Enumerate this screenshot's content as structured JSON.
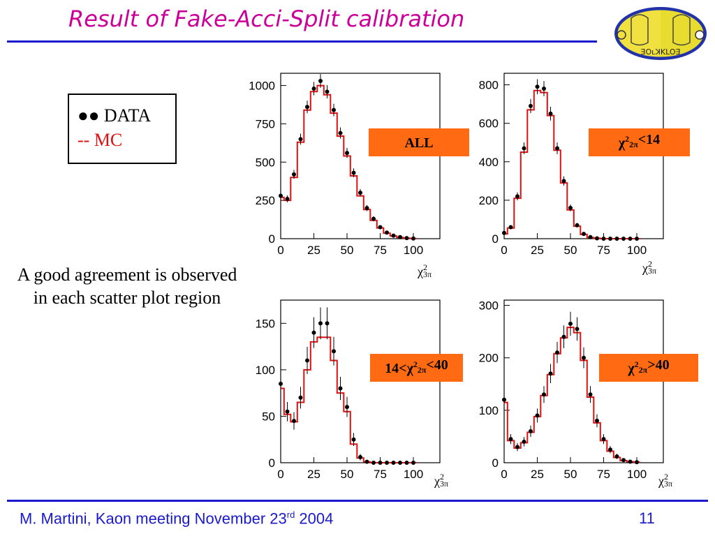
{
  "slide": {
    "title": "Result of Fake-Acci-Split calibration",
    "legend": {
      "data_label": "●● DATA",
      "mc_label": "--  MC"
    },
    "note": "A good agreement is observed  in each scatter plot region",
    "footer": {
      "author_meeting": "M. Martini, Kaon meeting  November 23",
      "date_sup": "rd",
      "year": " 2004",
      "page_number": "11"
    },
    "logo_text": "ƎOʟꓘKLOƎ",
    "colors": {
      "title": "#cc0099",
      "rule": "#1a1acc",
      "footer": "#1a1acc",
      "data": "#000000",
      "mc": "#e01010",
      "cut_box": "#ff6a13"
    }
  },
  "chart_data": [
    {
      "type": "line",
      "cut_label": "ALL",
      "xlabel": "χ²3π",
      "xlim": [
        0,
        120
      ],
      "ylim": [
        0,
        1080
      ],
      "xticks": [
        0,
        25,
        50,
        75,
        100
      ],
      "yticks": [
        0,
        250,
        500,
        750,
        1000
      ],
      "series": [
        {
          "name": "DATA",
          "x": [
            0,
            5,
            10,
            15,
            20,
            25,
            30,
            35,
            40,
            45,
            50,
            55,
            60,
            65,
            70,
            75,
            80,
            85,
            90,
            95,
            100
          ],
          "values": [
            280,
            260,
            420,
            650,
            860,
            980,
            1030,
            960,
            840,
            690,
            560,
            430,
            300,
            200,
            130,
            75,
            40,
            20,
            10,
            4,
            1
          ]
        },
        {
          "name": "MC",
          "x": [
            0,
            5,
            10,
            15,
            20,
            25,
            30,
            35,
            40,
            45,
            50,
            55,
            60,
            65,
            70,
            75,
            80,
            85,
            90,
            95,
            100
          ],
          "values": [
            270,
            250,
            400,
            630,
            840,
            960,
            1000,
            940,
            820,
            670,
            540,
            410,
            280,
            190,
            120,
            70,
            36,
            18,
            8,
            3,
            1
          ]
        }
      ]
    },
    {
      "type": "line",
      "cut_label": "χ²2π<14",
      "xlabel": "χ²3π",
      "xlim": [
        0,
        120
      ],
      "ylim": [
        0,
        860
      ],
      "xticks": [
        0,
        25,
        50,
        75,
        100
      ],
      "yticks": [
        0,
        200,
        400,
        600,
        800
      ],
      "series": [
        {
          "name": "DATA",
          "x": [
            0,
            5,
            10,
            15,
            20,
            25,
            30,
            35,
            40,
            45,
            50,
            55,
            60,
            65,
            70,
            75,
            80,
            85,
            90,
            95,
            100
          ],
          "values": [
            30,
            60,
            220,
            470,
            690,
            790,
            780,
            650,
            470,
            300,
            160,
            70,
            25,
            8,
            2,
            0,
            0,
            0,
            0,
            0,
            0
          ]
        },
        {
          "name": "MC",
          "x": [
            0,
            5,
            10,
            15,
            20,
            25,
            30,
            35,
            40,
            45,
            50,
            55,
            60,
            65,
            70,
            75,
            80,
            85,
            90,
            95,
            100
          ],
          "values": [
            25,
            55,
            210,
            450,
            670,
            770,
            760,
            640,
            460,
            290,
            150,
            65,
            22,
            6,
            2,
            0,
            0,
            0,
            0,
            0,
            0
          ]
        }
      ]
    },
    {
      "type": "line",
      "cut_label": "14<χ²2π<40",
      "xlabel": "χ²3π",
      "xlim": [
        0,
        120
      ],
      "ylim": [
        0,
        175
      ],
      "xticks": [
        0,
        25,
        50,
        75,
        100
      ],
      "yticks": [
        0,
        50,
        100,
        150
      ],
      "series": [
        {
          "name": "DATA",
          "x": [
            0,
            5,
            10,
            15,
            20,
            25,
            30,
            35,
            40,
            45,
            50,
            55,
            60,
            65,
            70,
            75,
            80,
            85,
            90,
            95,
            100
          ],
          "values": [
            85,
            55,
            45,
            70,
            110,
            140,
            150,
            150,
            120,
            80,
            60,
            25,
            6,
            1,
            0,
            0,
            0,
            0,
            0,
            0,
            0
          ]
        },
        {
          "name": "MC",
          "x": [
            0,
            5,
            10,
            15,
            20,
            25,
            30,
            35,
            40,
            45,
            50,
            55,
            60,
            65,
            70,
            75,
            80,
            85,
            90,
            95,
            100
          ],
          "values": [
            80,
            52,
            44,
            65,
            100,
            130,
            135,
            135,
            110,
            75,
            55,
            20,
            5,
            1,
            0,
            0,
            0,
            0,
            0,
            0,
            0
          ]
        }
      ]
    },
    {
      "type": "line",
      "cut_label": "χ²2π>40",
      "xlabel": "χ²3π",
      "xlim": [
        0,
        120
      ],
      "ylim": [
        0,
        310
      ],
      "xticks": [
        0,
        25,
        50,
        75,
        100
      ],
      "yticks": [
        0,
        100,
        200,
        300
      ],
      "series": [
        {
          "name": "DATA",
          "x": [
            0,
            5,
            10,
            15,
            20,
            25,
            30,
            35,
            40,
            45,
            50,
            55,
            60,
            65,
            70,
            75,
            80,
            85,
            90,
            95,
            100
          ],
          "values": [
            120,
            45,
            30,
            40,
            60,
            90,
            130,
            170,
            210,
            240,
            265,
            255,
            200,
            130,
            80,
            45,
            25,
            12,
            5,
            2,
            1
          ]
        },
        {
          "name": "MC",
          "x": [
            0,
            5,
            10,
            15,
            20,
            25,
            30,
            35,
            40,
            45,
            50,
            55,
            60,
            65,
            70,
            75,
            80,
            85,
            90,
            95,
            100
          ],
          "values": [
            115,
            42,
            28,
            38,
            58,
            88,
            128,
            168,
            208,
            238,
            258,
            248,
            195,
            125,
            76,
            42,
            22,
            10,
            4,
            2,
            1
          ]
        }
      ]
    }
  ]
}
